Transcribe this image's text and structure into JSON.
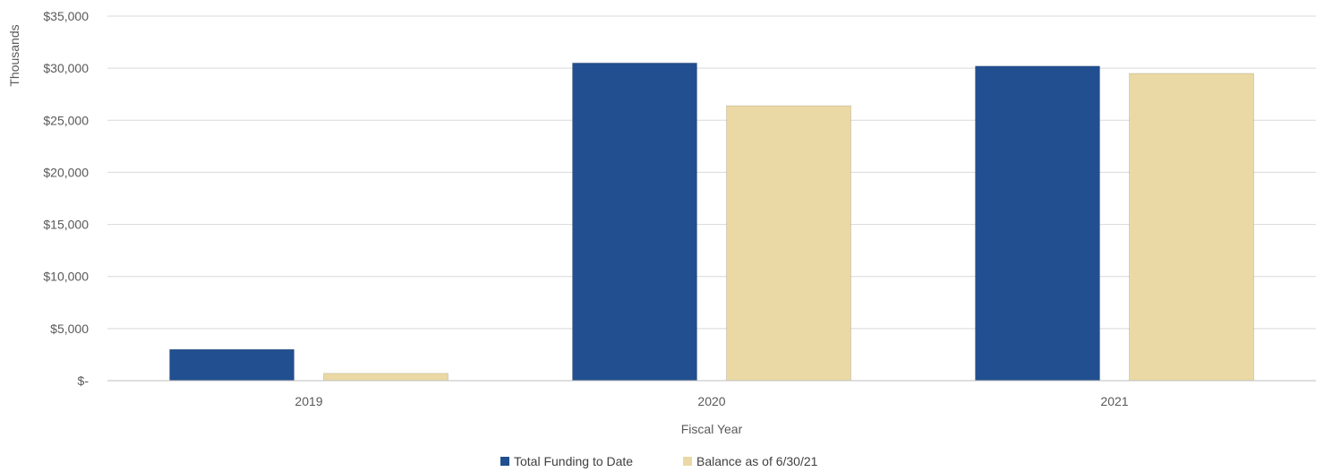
{
  "chart_data": {
    "type": "bar",
    "xlabel": "Fiscal Year",
    "ylabel": "Thousands",
    "categories": [
      "2019",
      "2020",
      "2021"
    ],
    "series": [
      {
        "name": "Total Funding to Date",
        "color": "#224f8f",
        "values": [
          3000,
          30500,
          30200
        ]
      },
      {
        "name": "Balance as of 6/30/21",
        "color": "#ead9a4",
        "values": [
          700,
          26400,
          29500
        ]
      }
    ],
    "ylim": [
      0,
      35000
    ],
    "yticks": [
      0,
      5000,
      10000,
      15000,
      20000,
      25000,
      30000,
      35000
    ],
    "ytick_labels": [
      "$-",
      "$5,000",
      "$10,000",
      "$15,000",
      "$20,000",
      "$25,000",
      "$30,000",
      "$35,000"
    ],
    "grid": true,
    "legend_position": "bottom"
  }
}
